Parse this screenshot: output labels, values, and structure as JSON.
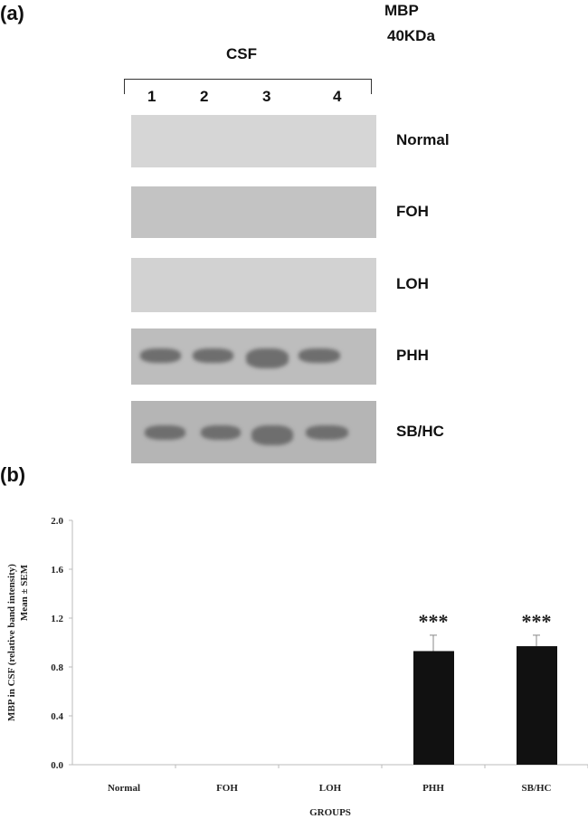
{
  "panel_a": {
    "label": "(a)",
    "protein": "MBP",
    "weight": "40KDa",
    "sample": "CSF",
    "lanes": [
      "1",
      "2",
      "3",
      "4"
    ],
    "blots": [
      {
        "group": "Normal",
        "bg": "#d6d6d6",
        "bands": false
      },
      {
        "group": "FOH",
        "bg": "#c3c3c3",
        "bands": false
      },
      {
        "group": "LOH",
        "bg": "#d2d2d2",
        "bands": false
      },
      {
        "group": "PHH",
        "bg": "#bdbdbd",
        "bands": true
      },
      {
        "group": "SB/HC",
        "bg": "#b5b5b5",
        "bands": true
      }
    ],
    "band_color": "#6e6e6e"
  },
  "panel_b": {
    "label": "(b)"
  },
  "chart_data": {
    "type": "bar",
    "categories": [
      "Normal",
      "FOH",
      "LOH",
      "PHH",
      "SB/HC"
    ],
    "values": [
      0,
      0,
      0,
      0.93,
      0.97
    ],
    "error_upper": [
      0,
      0,
      0,
      0.13,
      0.09
    ],
    "annotations": [
      "",
      "",
      "",
      "***",
      "***"
    ],
    "ylabel_line1": "MBP in CSF (relative band intensity)",
    "ylabel_line2": "Mean ± SEM",
    "xlabel": "GROUPS",
    "ylim": [
      0,
      2.0
    ],
    "yticks": [
      "0.0",
      "0.4",
      "0.8",
      "1.2",
      "1.6",
      "2.0"
    ],
    "grid": false,
    "bar_color": "#111111"
  }
}
